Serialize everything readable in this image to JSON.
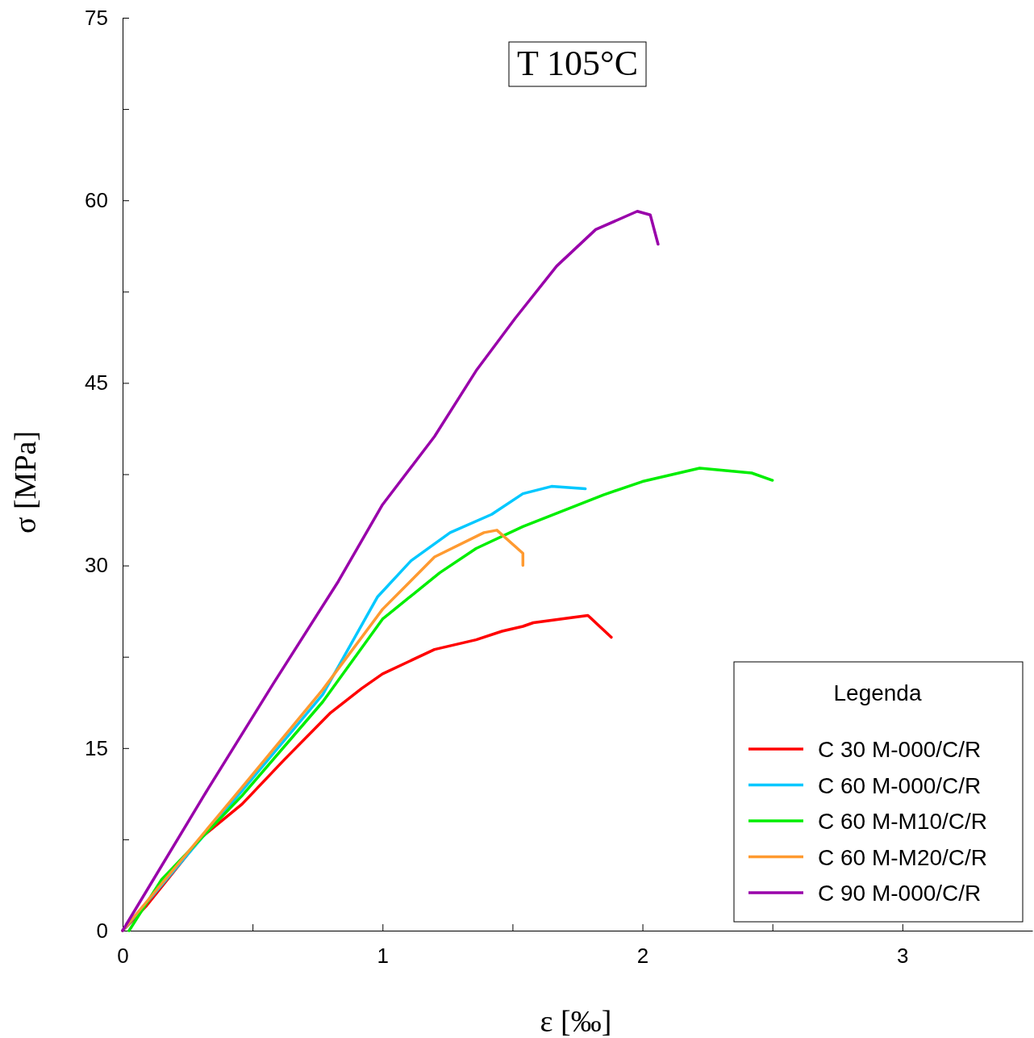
{
  "chart_data": {
    "type": "line",
    "title": "T 105°C",
    "xlabel": "ε [‰]",
    "ylabel": "σ [MPa]",
    "legend_title": "Legenda",
    "legend": "bottom right",
    "grid": false,
    "line_style": "solid",
    "marker": "none",
    "xlim": [
      0,
      3.5
    ],
    "xticks": [
      0,
      {
        "value": 0.5,
        "label": null
      },
      1,
      {
        "value": 1.5,
        "label": null
      },
      2,
      {
        "value": 2.5,
        "label": null
      },
      3
    ],
    "ylim": [
      0,
      75
    ],
    "yticks": [
      0,
      {
        "value": 7.5,
        "label": null
      },
      15,
      {
        "value": 22.5,
        "label": null
      },
      30,
      {
        "value": 37.5,
        "label": null
      },
      45,
      {
        "value": 52.5,
        "label": null
      },
      60,
      {
        "value": 67.5,
        "label": null
      },
      75
    ],
    "series": [
      {
        "name": "C 30 M-000/C/R",
        "color": "#ff0000",
        "x": [
          0,
          0.09,
          0.3,
          0.46,
          0.62,
          0.8,
          0.92,
          1.0,
          1.1,
          1.2,
          1.36,
          1.46,
          1.54,
          1.58,
          1.79,
          1.88
        ],
        "values": [
          0,
          2.0,
          7.6,
          10.4,
          14.0,
          17.9,
          19.9,
          21.1,
          22.1,
          23.1,
          23.9,
          24.6,
          25.0,
          25.3,
          25.9,
          24.1
        ]
      },
      {
        "name": "C 60 M-000/C/R",
        "color": "#00c8ff",
        "x": [
          0,
          0.46,
          0.77,
          0.98,
          1.11,
          1.26,
          1.42,
          1.54,
          1.65,
          1.78
        ],
        "values": [
          0,
          11.5,
          19.4,
          27.4,
          30.4,
          32.7,
          34.2,
          35.9,
          36.5,
          36.3
        ]
      },
      {
        "name": "C 60 M-M10/C/R",
        "color": "#00ee00",
        "x": [
          0.025,
          0.15,
          0.46,
          0.77,
          1.0,
          1.22,
          1.36,
          1.54,
          1.85,
          2.0,
          2.22,
          2.42,
          2.5
        ],
        "values": [
          0,
          4.2,
          11.1,
          18.8,
          25.6,
          29.4,
          31.4,
          33.2,
          35.8,
          36.9,
          38.0,
          37.6,
          37.0
        ]
      },
      {
        "name": "C 60 M-M20/C/R",
        "color": "#ff9a30",
        "x": [
          0,
          0.46,
          0.77,
          1.0,
          1.2,
          1.39,
          1.44,
          1.54,
          1.54
        ],
        "values": [
          0,
          11.8,
          19.8,
          26.4,
          30.7,
          32.7,
          32.9,
          31.0,
          30.0
        ]
      },
      {
        "name": "C 90 M-000/C/R",
        "color": "#9900aa",
        "x": [
          0,
          0.33,
          0.58,
          0.83,
          1.0,
          1.2,
          1.36,
          1.51,
          1.67,
          1.82,
          1.98,
          2.03,
          2.06
        ],
        "values": [
          0,
          11.7,
          20.3,
          28.7,
          35.0,
          40.6,
          46.0,
          50.3,
          54.6,
          57.6,
          59.1,
          58.8,
          56.4
        ]
      }
    ]
  }
}
